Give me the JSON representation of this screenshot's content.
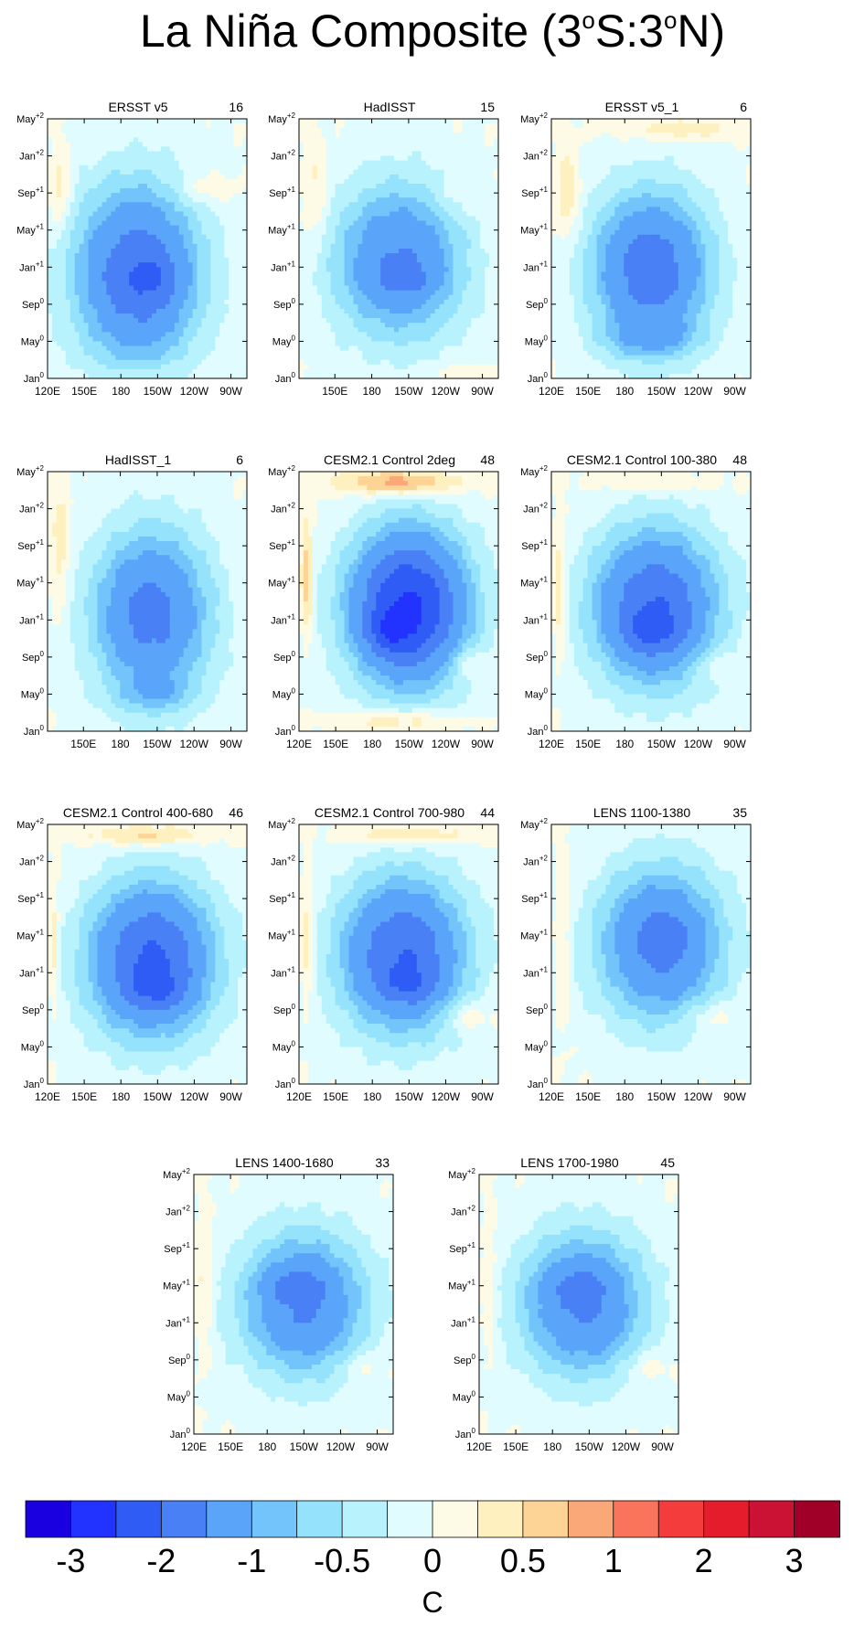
{
  "title": {
    "parts": [
      {
        "t": "La Niña Composite (3",
        "sup": false
      },
      {
        "t": "o",
        "sup": true
      },
      {
        "t": "S:3",
        "sup": false
      },
      {
        "t": "o",
        "sup": true
      },
      {
        "t": "N)",
        "sup": false
      }
    ]
  },
  "chart_data": [
    {
      "type": "heatmap",
      "title": "ERSST v5",
      "count": "16",
      "xticks": [
        "120E",
        "150E",
        "180",
        "150W",
        "120W",
        "90W"
      ],
      "cores": [
        {
          "x": 0.45,
          "y": 0.6,
          "sx": 0.32,
          "sy": 0.35,
          "a": -1.9
        },
        {
          "x": 0.55,
          "y": 0.62,
          "sx": 0.12,
          "sy": 0.08,
          "a": -0.4
        }
      ],
      "warm": [
        {
          "x": 0.06,
          "y": 0.28,
          "sx": 0.05,
          "sy": 0.16,
          "a": 0.5
        },
        {
          "x": 0.78,
          "y": 0.27,
          "sx": 0.14,
          "sy": 0.06,
          "a": 0.35
        },
        {
          "x": 0.5,
          "y": 0.98,
          "sx": 0.22,
          "sy": 0.03,
          "a": 0.2
        }
      ]
    },
    {
      "type": "heatmap",
      "title": "HadISST",
      "count": "15",
      "xticks": [
        "150E",
        "180",
        "150W",
        "120W",
        "90W"
      ],
      "cores": [
        {
          "x": 0.5,
          "y": 0.55,
          "sx": 0.33,
          "sy": 0.3,
          "a": -1.55
        },
        {
          "x": 0.55,
          "y": 0.62,
          "sx": 0.16,
          "sy": 0.06,
          "a": -0.35
        }
      ],
      "warm": [
        {
          "x": 0.08,
          "y": 0.3,
          "sx": 0.06,
          "sy": 0.2,
          "a": 0.4
        },
        {
          "x": 0.8,
          "y": 0.3,
          "sx": 0.14,
          "sy": 0.07,
          "a": 0.2
        },
        {
          "x": 0.8,
          "y": 0.98,
          "sx": 0.18,
          "sy": 0.03,
          "a": 0.25
        }
      ]
    },
    {
      "type": "heatmap",
      "title": "ERSST v5_1",
      "count": "6",
      "xticks": [
        "120E",
        "150E",
        "180",
        "150W",
        "120W",
        "90W"
      ],
      "cores": [
        {
          "x": 0.5,
          "y": 0.58,
          "sx": 0.3,
          "sy": 0.3,
          "a": -1.85
        },
        {
          "x": 0.5,
          "y": 0.85,
          "sx": 0.25,
          "sy": 0.07,
          "a": -0.5
        }
      ],
      "warm": [
        {
          "x": 0.08,
          "y": 0.3,
          "sx": 0.06,
          "sy": 0.18,
          "a": 0.5
        },
        {
          "x": 0.65,
          "y": 0.04,
          "sx": 0.3,
          "sy": 0.04,
          "a": 0.45
        }
      ]
    },
    {
      "type": "heatmap",
      "title": "HadISST_1",
      "count": "6",
      "xticks": [
        "150E",
        "180",
        "150W",
        "120W",
        "90W"
      ],
      "cores": [
        {
          "x": 0.52,
          "y": 0.55,
          "sx": 0.3,
          "sy": 0.33,
          "a": -1.7
        },
        {
          "x": 0.55,
          "y": 0.86,
          "sx": 0.2,
          "sy": 0.06,
          "a": -0.4
        }
      ],
      "warm": [
        {
          "x": 0.06,
          "y": 0.3,
          "sx": 0.05,
          "sy": 0.25,
          "a": 0.45
        }
      ]
    },
    {
      "type": "heatmap",
      "title": "CESM2.1 Control 2deg",
      "count": "48",
      "xticks": [
        "120E",
        "150E",
        "180",
        "150W",
        "120W",
        "90W"
      ],
      "cores": [
        {
          "x": 0.55,
          "y": 0.52,
          "sx": 0.3,
          "sy": 0.3,
          "a": -2.6
        },
        {
          "x": 0.45,
          "y": 0.62,
          "sx": 0.12,
          "sy": 0.08,
          "a": -0.6
        }
      ],
      "warm": [
        {
          "x": 0.5,
          "y": 0.04,
          "sx": 0.3,
          "sy": 0.05,
          "a": 1.0
        },
        {
          "x": 0.5,
          "y": 0.96,
          "sx": 0.3,
          "sy": 0.04,
          "a": 0.6
        },
        {
          "x": 0.04,
          "y": 0.4,
          "sx": 0.03,
          "sy": 0.22,
          "a": 0.8
        },
        {
          "x": 0.85,
          "y": 0.74,
          "sx": 0.1,
          "sy": 0.06,
          "a": 0.4
        }
      ]
    },
    {
      "type": "heatmap",
      "title": "CESM2.1 Control 100-380",
      "count": "48",
      "xticks": [
        "120E",
        "150E",
        "180",
        "150W",
        "120W",
        "90W"
      ],
      "cores": [
        {
          "x": 0.52,
          "y": 0.52,
          "sx": 0.32,
          "sy": 0.3,
          "a": -2.0
        },
        {
          "x": 0.5,
          "y": 0.62,
          "sx": 0.15,
          "sy": 0.08,
          "a": -0.5
        }
      ],
      "warm": [
        {
          "x": 0.04,
          "y": 0.45,
          "sx": 0.03,
          "sy": 0.25,
          "a": 0.6
        },
        {
          "x": 0.5,
          "y": 0.04,
          "sx": 0.3,
          "sy": 0.04,
          "a": 0.35
        },
        {
          "x": 0.82,
          "y": 0.75,
          "sx": 0.12,
          "sy": 0.06,
          "a": 0.3
        }
      ]
    },
    {
      "type": "heatmap",
      "title": "CESM2.1 Control 400-680",
      "count": "46",
      "xticks": [
        "120E",
        "150E",
        "180",
        "150W",
        "120W",
        "90W"
      ],
      "cores": [
        {
          "x": 0.52,
          "y": 0.52,
          "sx": 0.32,
          "sy": 0.3,
          "a": -2.1
        },
        {
          "x": 0.55,
          "y": 0.64,
          "sx": 0.15,
          "sy": 0.07,
          "a": -0.5
        }
      ],
      "warm": [
        {
          "x": 0.03,
          "y": 0.45,
          "sx": 0.03,
          "sy": 0.25,
          "a": 0.5
        },
        {
          "x": 0.5,
          "y": 0.04,
          "sx": 0.3,
          "sy": 0.04,
          "a": 0.7
        }
      ]
    },
    {
      "type": "heatmap",
      "title": "CESM2.1 Control 700-980",
      "count": "44",
      "xticks": [
        "120E",
        "150E",
        "180",
        "150W",
        "120W",
        "90W"
      ],
      "cores": [
        {
          "x": 0.52,
          "y": 0.5,
          "sx": 0.32,
          "sy": 0.3,
          "a": -2.0
        },
        {
          "x": 0.55,
          "y": 0.62,
          "sx": 0.15,
          "sy": 0.07,
          "a": -0.45
        }
      ],
      "warm": [
        {
          "x": 0.04,
          "y": 0.45,
          "sx": 0.03,
          "sy": 0.25,
          "a": 0.5
        },
        {
          "x": 0.55,
          "y": 0.04,
          "sx": 0.3,
          "sy": 0.04,
          "a": 0.6
        },
        {
          "x": 0.85,
          "y": 0.74,
          "sx": 0.12,
          "sy": 0.06,
          "a": 0.4
        }
      ]
    },
    {
      "type": "heatmap",
      "title": "LENS 1100-1380",
      "count": "35",
      "xticks": [
        "120E",
        "150E",
        "180",
        "150W",
        "120W",
        "90W"
      ],
      "cores": [
        {
          "x": 0.55,
          "y": 0.46,
          "sx": 0.32,
          "sy": 0.3,
          "a": -1.7
        },
        {
          "x": 0.58,
          "y": 0.42,
          "sx": 0.1,
          "sy": 0.06,
          "a": -0.3
        }
      ],
      "warm": [
        {
          "x": 0.06,
          "y": 0.45,
          "sx": 0.04,
          "sy": 0.3,
          "a": 0.3
        },
        {
          "x": 0.8,
          "y": 0.74,
          "sx": 0.14,
          "sy": 0.06,
          "a": 0.35
        }
      ]
    },
    {
      "type": "heatmap",
      "title": "LENS 1400-1680",
      "count": "33",
      "xticks": [
        "120E",
        "150E",
        "180",
        "150W",
        "120W",
        "90W"
      ],
      "cores": [
        {
          "x": 0.55,
          "y": 0.5,
          "sx": 0.32,
          "sy": 0.28,
          "a": -1.6
        },
        {
          "x": 0.5,
          "y": 0.42,
          "sx": 0.16,
          "sy": 0.06,
          "a": -0.35
        }
      ],
      "warm": [
        {
          "x": 0.05,
          "y": 0.45,
          "sx": 0.04,
          "sy": 0.25,
          "a": 0.4
        },
        {
          "x": 0.85,
          "y": 0.74,
          "sx": 0.12,
          "sy": 0.06,
          "a": 0.3
        }
      ]
    },
    {
      "type": "heatmap",
      "title": "LENS 1700-1980",
      "count": "45",
      "xticks": [
        "120E",
        "150E",
        "180",
        "150W",
        "120W",
        "90W"
      ],
      "cores": [
        {
          "x": 0.52,
          "y": 0.5,
          "sx": 0.32,
          "sy": 0.28,
          "a": -1.6
        },
        {
          "x": 0.5,
          "y": 0.42,
          "sx": 0.16,
          "sy": 0.06,
          "a": -0.3
        }
      ],
      "warm": [
        {
          "x": 0.05,
          "y": 0.45,
          "sx": 0.04,
          "sy": 0.25,
          "a": 0.35
        },
        {
          "x": 0.85,
          "y": 0.74,
          "sx": 0.12,
          "sy": 0.06,
          "a": 0.3
        }
      ]
    }
  ],
  "yticks": [
    {
      "m": "May",
      "s": "+2"
    },
    {
      "m": "Jan",
      "s": "+2"
    },
    {
      "m": "Sep",
      "s": "+1"
    },
    {
      "m": "May",
      "s": "+1"
    },
    {
      "m": "Jan",
      "s": "+1"
    },
    {
      "m": "Sep",
      "s": "0"
    },
    {
      "m": "May",
      "s": "0"
    },
    {
      "m": "Jan",
      "s": "0"
    }
  ],
  "colorbar": {
    "colors": [
      "#1a00e0",
      "#2233ff",
      "#2f5cf5",
      "#4a80f5",
      "#5aa4fa",
      "#72c4fa",
      "#95e2fc",
      "#b8f2fc",
      "#e0fcff",
      "#fdfae6",
      "#fef0bf",
      "#fdd496",
      "#fba878",
      "#f9745a",
      "#f43c3c",
      "#e41c2c",
      "#cc1234",
      "#a00028"
    ],
    "levels": [
      -3.5,
      -3,
      -2.5,
      -2,
      -1.5,
      -1,
      -0.75,
      -0.5,
      -0.25,
      0,
      0.25,
      0.5,
      0.75,
      1,
      1.5,
      2,
      2.5,
      3,
      3.5
    ],
    "labels": [
      "-3",
      "-2",
      "-1",
      "-0.5",
      "0",
      "0.5",
      "1",
      "2",
      "3"
    ],
    "unit": "C"
  }
}
